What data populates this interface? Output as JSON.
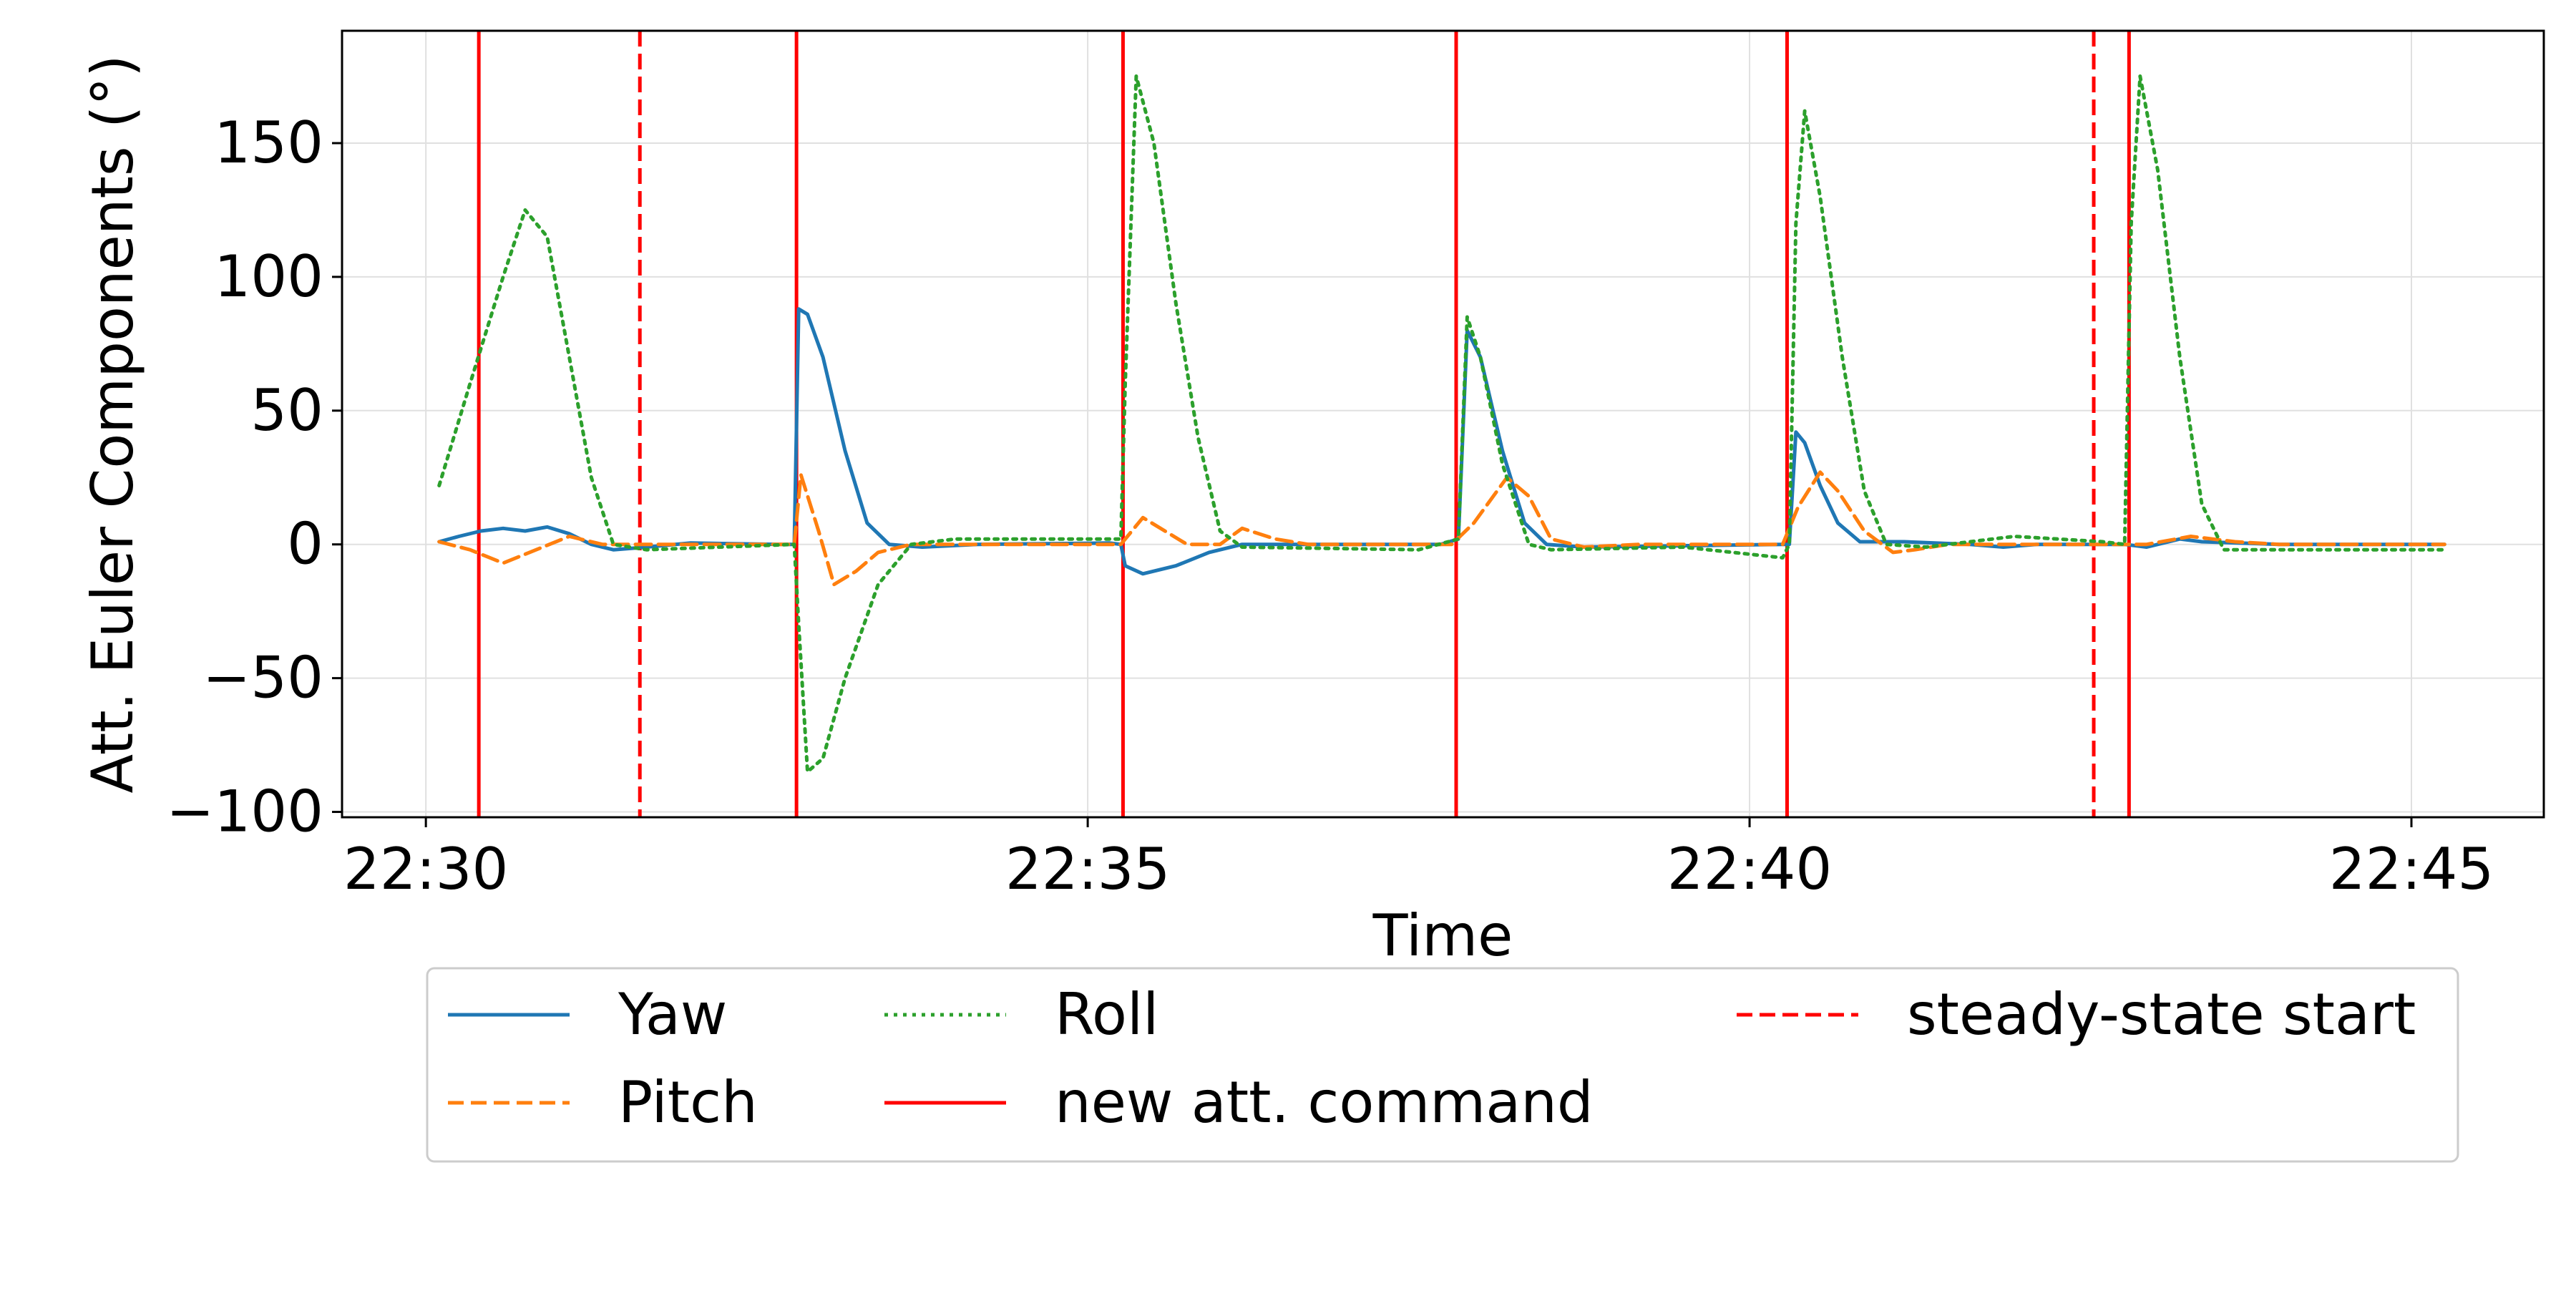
{
  "chart_data": {
    "type": "line",
    "title": "",
    "xlabel": "Time",
    "ylabel": "Att. Euler Components (°)",
    "xlim": [
      "22:29:22",
      "22:46:00"
    ],
    "ylim": [
      -102,
      192
    ],
    "x_ticks": [
      "22:30",
      "22:35",
      "22:40",
      "22:45"
    ],
    "y_ticks": [
      -100,
      -50,
      0,
      50,
      100,
      150
    ],
    "y_tick_labels": [
      "−100",
      "−50",
      "0",
      "50",
      "100",
      "150"
    ],
    "grid": true,
    "legend_position": "bottom (below axes)",
    "series": [
      {
        "name": "Yaw",
        "color": "#1f77b4",
        "style": "solid",
        "points": [
          [
            "22:30:06",
            1
          ],
          [
            "22:30:15",
            3
          ],
          [
            "22:30:25",
            5
          ],
          [
            "22:30:35",
            6
          ],
          [
            "22:30:45",
            5
          ],
          [
            "22:30:55",
            6.5
          ],
          [
            "22:31:05",
            4
          ],
          [
            "22:31:15",
            0
          ],
          [
            "22:31:25",
            -2
          ],
          [
            "22:31:40",
            -1
          ],
          [
            "22:32:00",
            0.5
          ],
          [
            "22:32:40",
            0
          ],
          [
            "22:32:47",
            0
          ],
          [
            "22:32:49",
            88
          ],
          [
            "22:32:53",
            86
          ],
          [
            "22:33:00",
            70
          ],
          [
            "22:33:10",
            35
          ],
          [
            "22:33:20",
            8
          ],
          [
            "22:33:30",
            0
          ],
          [
            "22:33:45",
            -1
          ],
          [
            "22:34:10",
            0
          ],
          [
            "22:35:10",
            0.5
          ],
          [
            "22:35:15",
            0
          ],
          [
            "22:35:17",
            -8
          ],
          [
            "22:35:25",
            -11
          ],
          [
            "22:35:40",
            -8
          ],
          [
            "22:35:55",
            -3
          ],
          [
            "22:36:10",
            0
          ],
          [
            "22:37:40",
            0
          ],
          [
            "22:37:48",
            2
          ],
          [
            "22:37:52",
            80
          ],
          [
            "22:37:58",
            70
          ],
          [
            "22:38:08",
            35
          ],
          [
            "22:38:18",
            8
          ],
          [
            "22:38:28",
            0
          ],
          [
            "22:38:45",
            -1
          ],
          [
            "22:40:15",
            0
          ],
          [
            "22:40:18",
            0
          ],
          [
            "22:40:21",
            42
          ],
          [
            "22:40:25",
            38
          ],
          [
            "22:40:32",
            22
          ],
          [
            "22:40:40",
            8
          ],
          [
            "22:40:50",
            1
          ],
          [
            "22:41:10",
            1
          ],
          [
            "22:41:40",
            0
          ],
          [
            "22:41:55",
            -1
          ],
          [
            "22:42:10",
            0
          ],
          [
            "22:42:50",
            0
          ],
          [
            "22:43:00",
            -1
          ],
          [
            "22:43:15",
            2
          ],
          [
            "22:43:25",
            1
          ],
          [
            "22:44:00",
            0
          ],
          [
            "22:45:15",
            0
          ]
        ]
      },
      {
        "name": "Pitch",
        "color": "#ff7f0e",
        "style": "dashed",
        "points": [
          [
            "22:30:06",
            1
          ],
          [
            "22:30:20",
            -2
          ],
          [
            "22:30:35",
            -7
          ],
          [
            "22:30:50",
            -2
          ],
          [
            "22:31:05",
            3
          ],
          [
            "22:31:20",
            0
          ],
          [
            "22:31:40",
            0
          ],
          [
            "22:32:47",
            0
          ],
          [
            "22:32:50",
            26
          ],
          [
            "22:32:58",
            5
          ],
          [
            "22:33:05",
            -15
          ],
          [
            "22:33:15",
            -10
          ],
          [
            "22:33:25",
            -3
          ],
          [
            "22:33:40",
            0
          ],
          [
            "22:35:15",
            0
          ],
          [
            "22:35:25",
            10
          ],
          [
            "22:35:35",
            5
          ],
          [
            "22:35:45",
            0
          ],
          [
            "22:36:00",
            0
          ],
          [
            "22:36:10",
            6
          ],
          [
            "22:36:25",
            2
          ],
          [
            "22:36:40",
            0
          ],
          [
            "22:37:45",
            0
          ],
          [
            "22:37:55",
            8
          ],
          [
            "22:38:10",
            25
          ],
          [
            "22:38:20",
            18
          ],
          [
            "22:38:30",
            2
          ],
          [
            "22:38:45",
            -1
          ],
          [
            "22:39:10",
            0
          ],
          [
            "22:40:15",
            0
          ],
          [
            "22:40:22",
            14
          ],
          [
            "22:40:32",
            27
          ],
          [
            "22:40:40",
            20
          ],
          [
            "22:40:52",
            5
          ],
          [
            "22:41:05",
            -3
          ],
          [
            "22:41:15",
            -2
          ],
          [
            "22:41:30",
            0
          ],
          [
            "22:43:00",
            0
          ],
          [
            "22:43:20",
            3
          ],
          [
            "22:43:40",
            1
          ],
          [
            "22:44:00",
            0
          ],
          [
            "22:45:15",
            0
          ]
        ]
      },
      {
        "name": "Roll",
        "color": "#2ca02c",
        "style": "dotted",
        "points": [
          [
            "22:30:06",
            22
          ],
          [
            "22:30:20",
            60
          ],
          [
            "22:30:35",
            100
          ],
          [
            "22:30:45",
            125
          ],
          [
            "22:30:55",
            115
          ],
          [
            "22:31:05",
            70
          ],
          [
            "22:31:15",
            25
          ],
          [
            "22:31:25",
            0
          ],
          [
            "22:31:40",
            -2
          ],
          [
            "22:32:47",
            0
          ],
          [
            "22:32:49",
            -30
          ],
          [
            "22:32:53",
            -85
          ],
          [
            "22:33:00",
            -80
          ],
          [
            "22:33:10",
            -50
          ],
          [
            "22:33:25",
            -15
          ],
          [
            "22:33:40",
            0
          ],
          [
            "22:34:00",
            2
          ],
          [
            "22:35:15",
            2
          ],
          [
            "22:35:17",
            60
          ],
          [
            "22:35:22",
            175
          ],
          [
            "22:35:30",
            150
          ],
          [
            "22:35:40",
            90
          ],
          [
            "22:35:50",
            40
          ],
          [
            "22:36:00",
            5
          ],
          [
            "22:36:10",
            -1
          ],
          [
            "22:37:30",
            -2
          ],
          [
            "22:37:48",
            2
          ],
          [
            "22:37:52",
            85
          ],
          [
            "22:37:58",
            70
          ],
          [
            "22:38:08",
            30
          ],
          [
            "22:38:20",
            0
          ],
          [
            "22:38:30",
            -2
          ],
          [
            "22:39:30",
            -1
          ],
          [
            "22:40:15",
            -5
          ],
          [
            "22:40:18",
            0
          ],
          [
            "22:40:21",
            120
          ],
          [
            "22:40:25",
            162
          ],
          [
            "22:40:32",
            130
          ],
          [
            "22:40:42",
            70
          ],
          [
            "22:40:52",
            20
          ],
          [
            "22:41:02",
            0
          ],
          [
            "22:41:20",
            -1
          ],
          [
            "22:42:00",
            3
          ],
          [
            "22:42:40",
            1
          ],
          [
            "22:42:50",
            0
          ],
          [
            "22:42:53",
            120
          ],
          [
            "22:42:57",
            175
          ],
          [
            "22:43:05",
            140
          ],
          [
            "22:43:15",
            70
          ],
          [
            "22:43:25",
            15
          ],
          [
            "22:43:35",
            -2
          ],
          [
            "22:45:15",
            -2
          ]
        ]
      }
    ],
    "vertical_lines": [
      {
        "name": "new att. command",
        "color": "#ff0000",
        "style": "solid",
        "times": [
          "22:30:24",
          "22:32:48",
          "22:35:16",
          "22:37:47",
          "22:40:17",
          "22:42:52"
        ]
      },
      {
        "name": "steady-state start",
        "color": "#ff0000",
        "style": "dashed",
        "times": [
          "22:31:37",
          "22:42:36"
        ]
      }
    ],
    "legend": [
      {
        "label": "Yaw",
        "color": "#1f77b4",
        "style": "solid"
      },
      {
        "label": "Pitch",
        "color": "#ff7f0e",
        "style": "dashed"
      },
      {
        "label": "Roll",
        "color": "#2ca02c",
        "style": "dotted"
      },
      {
        "label": "new att. command",
        "color": "#ff0000",
        "style": "solid"
      },
      {
        "label": "steady-state start",
        "color": "#ff0000",
        "style": "dashed"
      }
    ]
  }
}
